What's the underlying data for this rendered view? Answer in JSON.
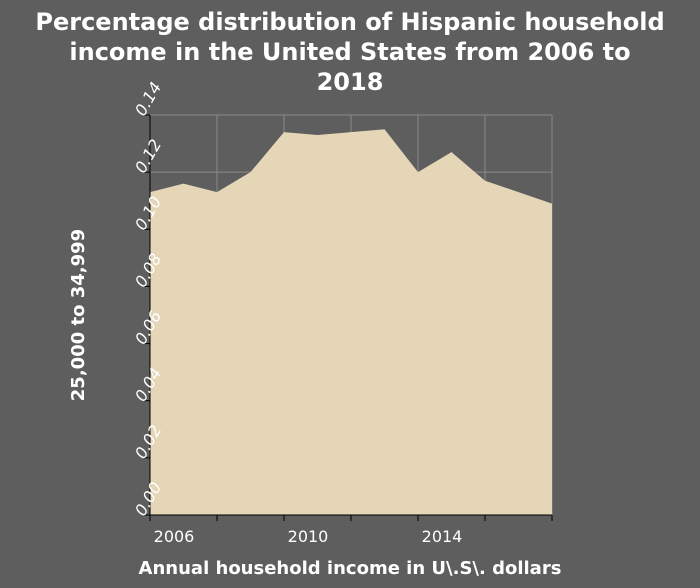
{
  "chart_data": {
    "type": "area",
    "title": "Percentage distribution of Hispanic household income in the United States from 2006 to 2018",
    "title_lines": [
      "Percentage distribution of Hispanic household",
      "income in the United States from 2006 to",
      "2018"
    ],
    "xlabel": "Annual household income in U\\.S\\. dollars",
    "ylabel": "25,000 to 34,999",
    "x": [
      2006,
      2007,
      2008,
      2009,
      2010,
      2011,
      2012,
      2013,
      2014,
      2015,
      2016,
      2017,
      2018
    ],
    "values": [
      0.113,
      0.116,
      0.113,
      0.12,
      0.134,
      0.133,
      0.134,
      0.135,
      0.12,
      0.127,
      0.117,
      0.113,
      0.109
    ],
    "xlim": [
      2006,
      2018
    ],
    "ylim": [
      0,
      0.14
    ],
    "xticks": [
      2006,
      2010,
      2014
    ],
    "yticks": [
      "0.00",
      "0.02",
      "0.04",
      "0.06",
      "0.08",
      "0.10",
      "0.12",
      "0.14"
    ],
    "grid": true,
    "legend": "none",
    "colors": {
      "background": "#5e5e5e",
      "fill": "#e5d6b8",
      "grid": "#8a8a8a",
      "text": "#ffffff"
    }
  }
}
